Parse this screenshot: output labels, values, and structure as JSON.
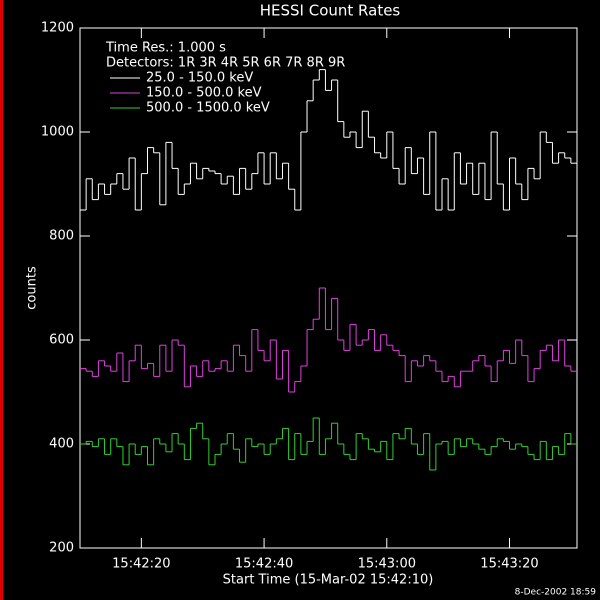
{
  "chart_data": {
    "type": "step",
    "title": "HESSI Count Rates",
    "y_label": "counts",
    "x_label": "Start Time (15-Mar-02 15:42:10)",
    "annotations": [
      "Time Res.: 1.000 s",
      "Detectors: 1R 3R 4R 5R 6R 7R 8R 9R"
    ],
    "footer": "8-Dec-2002 18:59",
    "xlim": [
      0,
      81
    ],
    "xticks": [
      {
        "value": 10,
        "label": "15:42:20"
      },
      {
        "value": 30,
        "label": "15:42:40"
      },
      {
        "value": 50,
        "label": "15:43:00"
      },
      {
        "value": 70,
        "label": "15:43:20"
      }
    ],
    "ylim": [
      200,
      1200
    ],
    "yticks": [
      200,
      400,
      600,
      800,
      1000,
      1200
    ],
    "x": [
      0,
      1,
      2,
      3,
      4,
      5,
      6,
      7,
      8,
      9,
      10,
      11,
      12,
      13,
      14,
      15,
      16,
      17,
      18,
      19,
      20,
      21,
      22,
      23,
      24,
      25,
      26,
      27,
      28,
      29,
      30,
      31,
      32,
      33,
      34,
      35,
      36,
      37,
      38,
      39,
      40,
      41,
      42,
      43,
      44,
      45,
      46,
      47,
      48,
      49,
      50,
      51,
      52,
      53,
      54,
      55,
      56,
      57,
      58,
      59,
      60,
      61,
      62,
      63,
      64,
      65,
      66,
      67,
      68,
      69,
      70,
      71,
      72,
      73,
      74,
      75,
      76,
      77,
      78,
      79,
      80
    ],
    "series": [
      {
        "name": "25.0 - 150.0 keV",
        "color": "#ffffff",
        "values": [
          850,
          910,
          870,
          900,
          880,
          900,
          920,
          890,
          950,
          850,
          920,
          970,
          960,
          860,
          980,
          930,
          880,
          900,
          940,
          910,
          930,
          925,
          920,
          900,
          915,
          880,
          930,
          890,
          920,
          960,
          900,
          960,
          910,
          940,
          890,
          850,
          1000,
          1060,
          1100,
          1120,
          1080,
          1100,
          1020,
          990,
          1000,
          970,
          1040,
          990,
          960,
          950,
          1000,
          930,
          900,
          970,
          920,
          950,
          880,
          1000,
          850,
          910,
          850,
          960,
          900,
          940,
          880,
          940,
          870,
          1000,
          900,
          850,
          950,
          900,
          870,
          930,
          910,
          1000,
          980,
          940,
          960,
          950,
          940
        ]
      },
      {
        "name": "150.0 - 500.0 keV",
        "color": "#e040e0",
        "values": [
          545,
          540,
          530,
          560,
          550,
          540,
          575,
          520,
          560,
          590,
          545,
          555,
          530,
          590,
          540,
          600,
          590,
          510,
          550,
          530,
          560,
          540,
          545,
          560,
          540,
          590,
          570,
          540,
          620,
          580,
          560,
          600,
          525,
          580,
          500,
          520,
          550,
          620,
          640,
          700,
          620,
          680,
          600,
          580,
          630,
          590,
          600,
          620,
          580,
          610,
          590,
          580,
          570,
          520,
          560,
          550,
          570,
          560,
          540,
          520,
          530,
          510,
          540,
          540,
          560,
          570,
          550,
          520,
          560,
          580,
          555,
          600,
          570,
          520,
          545,
          580,
          590,
          560,
          600,
          550,
          540
        ]
      },
      {
        "name": "500.0 - 1500.0 keV",
        "color": "#30d030",
        "values": [
          400,
          405,
          395,
          410,
          380,
          410,
          395,
          360,
          400,
          380,
          395,
          360,
          410,
          400,
          385,
          420,
          400,
          370,
          430,
          440,
          410,
          360,
          380,
          400,
          420,
          390,
          365,
          410,
          395,
          400,
          380,
          400,
          410,
          430,
          370,
          420,
          380,
          405,
          450,
          380,
          410,
          440,
          400,
          380,
          370,
          420,
          410,
          390,
          385,
          405,
          370,
          420,
          410,
          430,
          400,
          380,
          420,
          350,
          400,
          405,
          380,
          410,
          395,
          410,
          400,
          390,
          380,
          395,
          410,
          405,
          390,
          400,
          395,
          380,
          370,
          405,
          370,
          395,
          380,
          420,
          400
        ]
      }
    ]
  }
}
